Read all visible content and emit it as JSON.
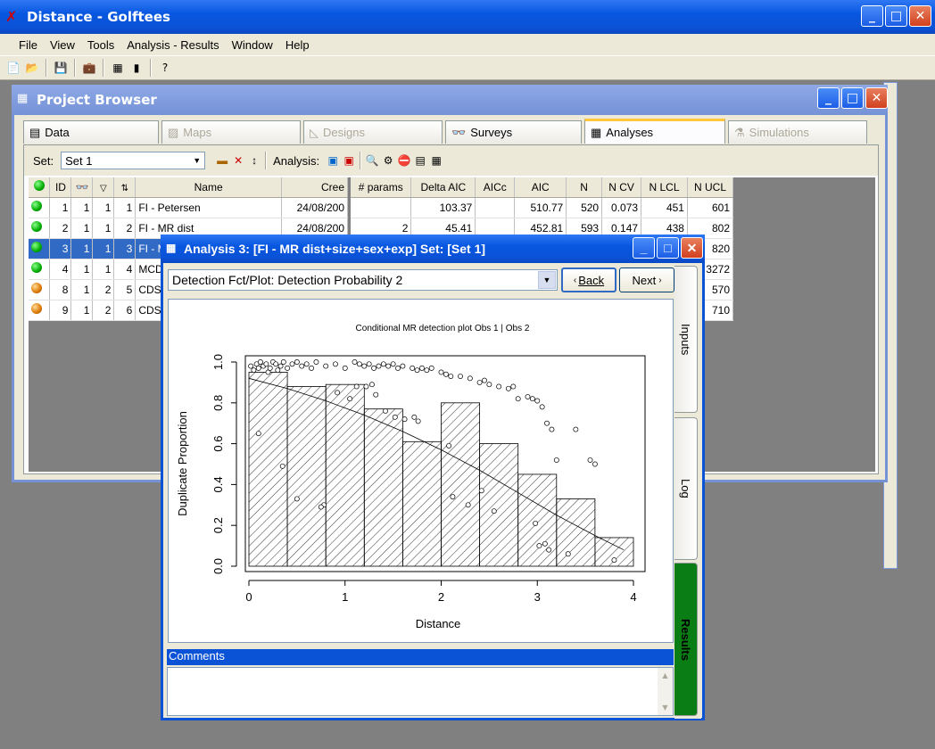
{
  "app": {
    "title": "Distance - Golftees",
    "menu": [
      "File",
      "View",
      "Tools",
      "Analysis - Results",
      "Window",
      "Help"
    ]
  },
  "browser": {
    "title": "Project Browser",
    "tabs": [
      {
        "label": "Data",
        "state": "normal"
      },
      {
        "label": "Maps",
        "state": "disabled"
      },
      {
        "label": "Designs",
        "state": "disabled"
      },
      {
        "label": "Surveys",
        "state": "normal"
      },
      {
        "label": "Analyses",
        "state": "selected"
      },
      {
        "label": "Simulations",
        "state": "disabled"
      }
    ],
    "set_label": "Set:",
    "set_value": "Set 1",
    "analysis_label": "Analysis:",
    "left_columns": [
      "ID",
      "Name",
      "Cree"
    ],
    "right_columns": [
      "# params",
      "Delta AIC",
      "AICc",
      "AIC",
      "N",
      "N CV",
      "N LCL",
      "N UCL"
    ],
    "rows": [
      {
        "status": "g",
        "id": "1",
        "c1": "1",
        "c2": "1",
        "c3": "1",
        "name": "FI - Petersen",
        "created": "24/08/200",
        "params": "",
        "delta": "103.37",
        "aicc": "",
        "aic": "510.77",
        "n": "520",
        "ncv": "0.073",
        "nlcl": "451",
        "nucl": "601"
      },
      {
        "status": "g",
        "id": "2",
        "c1": "1",
        "c2": "1",
        "c3": "2",
        "name": "FI - MR dist",
        "created": "24/08/200",
        "params": "2",
        "delta": "45.41",
        "aicc": "",
        "aic": "452.81",
        "n": "593",
        "ncv": "0.147",
        "nlcl": "438",
        "nucl": "802"
      },
      {
        "status": "g",
        "id": "3",
        "c1": "1",
        "c2": "1",
        "c3": "3",
        "name": "FI - M",
        "created": "",
        "params": "",
        "delta": "",
        "aicc": "",
        "aic": "",
        "n": "",
        "ncv": "",
        "nlcl": "",
        "nucl": "820",
        "selected": true
      },
      {
        "status": "g",
        "id": "4",
        "c1": "1",
        "c2": "1",
        "c3": "4",
        "name": "MCD",
        "created": "",
        "params": "",
        "delta": "",
        "aicc": "",
        "aic": "",
        "n": "",
        "ncv": "",
        "nlcl": "",
        "nucl": "3272"
      },
      {
        "status": "o",
        "id": "8",
        "c1": "1",
        "c2": "2",
        "c3": "5",
        "name": "CDS",
        "created": "",
        "params": "",
        "delta": "",
        "aicc": "",
        "aic": "",
        "n": "",
        "ncv": "",
        "nlcl": "",
        "nucl": "570"
      },
      {
        "status": "o",
        "id": "9",
        "c1": "1",
        "c2": "2",
        "c3": "6",
        "name": "CDS",
        "created": "",
        "params": "",
        "delta": "",
        "aicc": "",
        "aic": "",
        "n": "",
        "ncv": "",
        "nlcl": "",
        "nucl": "710"
      }
    ]
  },
  "analysis": {
    "title": "Analysis 3: [FI - MR dist+size+sex+exp] Set: [Set 1]",
    "dropdown_value": "Detection Fct/Plot: Detection Probability 2",
    "back_label": "Back",
    "next_label": "Next",
    "side_tabs": [
      "Inputs",
      "Log",
      "Results"
    ],
    "comments_label": "Comments",
    "comments_value": ""
  },
  "chart_data": {
    "type": "bar",
    "title": "Conditional MR detection plot Obs 1 | Obs 2",
    "xlabel": "Distance",
    "ylabel": "Duplicate Proportion",
    "xlim": [
      0,
      4
    ],
    "ylim": [
      0,
      1
    ],
    "xticks": [
      "0",
      "1",
      "2",
      "3",
      "4"
    ],
    "yticks": [
      "0.0",
      "0.2",
      "0.4",
      "0.6",
      "0.8",
      "1.0"
    ],
    "bins": [
      [
        0,
        0.4
      ],
      [
        0.4,
        0.8
      ],
      [
        0.8,
        1.2
      ],
      [
        1.2,
        1.6
      ],
      [
        1.6,
        2.0
      ],
      [
        2.0,
        2.4
      ],
      [
        2.4,
        2.8
      ],
      [
        2.8,
        3.2
      ],
      [
        3.2,
        3.6
      ],
      [
        3.6,
        4.0
      ]
    ],
    "values": [
      0.95,
      0.88,
      0.89,
      0.77,
      0.61,
      0.8,
      0.6,
      0.45,
      0.33,
      0.14
    ],
    "line": {
      "x": [
        0.0,
        0.4,
        0.8,
        1.2,
        1.6,
        2.0,
        2.4,
        2.8,
        3.2,
        3.6,
        3.9
      ],
      "y": [
        0.92,
        0.87,
        0.81,
        0.74,
        0.66,
        0.57,
        0.47,
        0.36,
        0.25,
        0.15,
        0.08
      ]
    },
    "points": {
      "x": [
        0.02,
        0.05,
        0.08,
        0.1,
        0.12,
        0.15,
        0.18,
        0.2,
        0.22,
        0.25,
        0.28,
        0.3,
        0.33,
        0.36,
        0.4,
        0.45,
        0.5,
        0.55,
        0.6,
        0.65,
        0.7,
        0.8,
        0.9,
        1.0,
        1.1,
        1.15,
        1.2,
        1.25,
        1.3,
        1.35,
        1.4,
        1.45,
        1.5,
        1.55,
        1.6,
        1.7,
        1.75,
        1.8,
        1.85,
        1.9,
        2.0,
        2.05,
        2.1,
        2.2,
        2.3,
        2.4,
        2.45,
        2.5,
        2.6,
        2.7,
        2.75,
        2.8,
        2.9,
        2.95,
        3.0,
        3.05,
        3.1,
        3.15,
        3.2,
        3.4,
        3.55,
        3.6,
        3.8,
        0.1,
        0.35,
        0.78,
        0.92,
        1.05,
        1.12,
        1.22,
        1.28,
        1.32,
        1.42,
        1.52,
        1.62,
        1.72,
        1.76,
        2.08,
        2.12,
        2.28,
        2.42,
        2.55,
        2.98,
        3.02,
        3.08,
        3.12,
        3.32,
        0.5,
        0.75
      ],
      "y": [
        0.98,
        0.96,
        0.99,
        0.97,
        1.0,
        0.98,
        0.99,
        0.95,
        0.97,
        1.0,
        0.99,
        0.96,
        0.98,
        1.0,
        0.97,
        0.99,
        1.0,
        0.98,
        0.99,
        0.97,
        1.0,
        0.98,
        0.99,
        0.97,
        1.0,
        0.99,
        0.98,
        0.99,
        0.97,
        0.98,
        0.99,
        0.98,
        0.99,
        0.97,
        0.98,
        0.97,
        0.96,
        0.97,
        0.96,
        0.97,
        0.95,
        0.94,
        0.93,
        0.93,
        0.92,
        0.9,
        0.91,
        0.89,
        0.88,
        0.87,
        0.88,
        0.82,
        0.83,
        0.82,
        0.81,
        0.78,
        0.7,
        0.67,
        0.52,
        0.67,
        0.52,
        0.5,
        0.03,
        0.65,
        0.49,
        0.3,
        0.85,
        0.82,
        0.88,
        0.88,
        0.89,
        0.84,
        0.76,
        0.73,
        0.72,
        0.73,
        0.71,
        0.59,
        0.34,
        0.3,
        0.37,
        0.27,
        0.21,
        0.1,
        0.11,
        0.08,
        0.06,
        0.33,
        0.29
      ]
    }
  }
}
